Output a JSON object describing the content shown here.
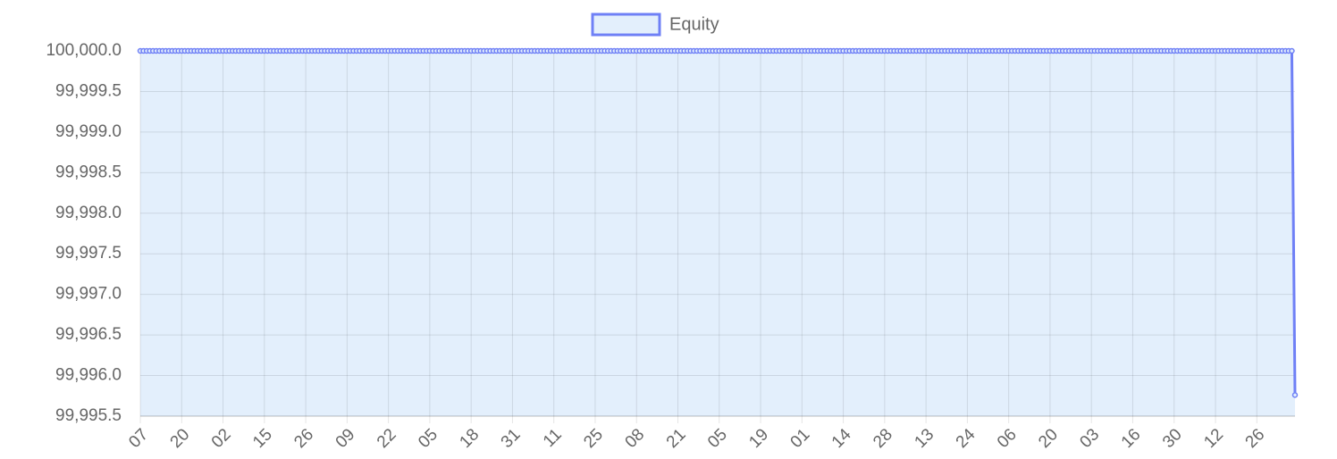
{
  "chart_data": {
    "type": "line",
    "series": [
      {
        "name": "Equity",
        "color": "#6f80f6",
        "fill": "#e3effc",
        "values": [
          100000,
          100000,
          100000,
          100000,
          100000,
          100000,
          100000,
          100000,
          100000,
          100000,
          100000,
          100000,
          100000,
          100000,
          100000,
          100000,
          100000,
          100000,
          100000,
          100000,
          100000,
          100000,
          100000,
          100000,
          100000,
          100000,
          100000,
          100000,
          100000,
          100000,
          100000,
          100000,
          100000,
          100000,
          100000,
          100000,
          100000,
          100000,
          100000,
          100000,
          100000,
          100000,
          100000,
          100000,
          100000,
          100000,
          100000,
          100000,
          100000,
          100000,
          100000,
          100000,
          100000,
          100000,
          100000,
          100000,
          100000,
          100000,
          100000,
          100000,
          100000,
          100000,
          100000,
          100000,
          100000,
          100000,
          100000,
          100000,
          100000,
          100000,
          100000,
          100000,
          100000,
          100000,
          100000,
          100000,
          100000,
          100000,
          100000,
          100000,
          100000,
          100000,
          100000,
          100000,
          100000,
          100000,
          100000,
          100000,
          100000,
          100000,
          100000,
          100000,
          100000,
          100000,
          100000,
          100000,
          100000,
          100000,
          100000,
          100000,
          100000,
          100000,
          100000,
          100000,
          100000,
          100000,
          100000,
          100000,
          100000,
          100000,
          100000,
          100000,
          100000,
          100000,
          100000,
          100000,
          100000,
          100000,
          100000,
          100000,
          100000,
          100000,
          100000,
          100000,
          100000,
          100000,
          100000,
          100000,
          100000,
          100000,
          100000,
          100000,
          100000,
          100000,
          100000,
          100000,
          100000,
          100000,
          100000,
          100000,
          100000,
          100000,
          100000,
          100000,
          100000,
          100000,
          100000,
          100000,
          100000,
          100000,
          100000,
          100000,
          100000,
          100000,
          100000,
          100000,
          100000,
          100000,
          100000,
          100000,
          100000,
          100000,
          100000,
          100000,
          100000,
          100000,
          100000,
          100000,
          100000,
          100000,
          100000,
          100000,
          100000,
          100000,
          100000,
          100000,
          100000,
          100000,
          100000,
          100000,
          100000,
          100000,
          100000,
          100000,
          100000,
          100000,
          100000,
          100000,
          100000,
          100000,
          100000,
          100000,
          100000,
          100000,
          100000,
          100000,
          100000,
          100000,
          100000,
          100000,
          100000,
          100000,
          100000,
          100000,
          100000,
          100000,
          100000,
          100000,
          100000,
          100000,
          100000,
          100000,
          100000,
          100000,
          100000,
          100000,
          100000,
          100000,
          100000,
          100000,
          100000,
          100000,
          100000,
          100000,
          100000,
          100000,
          100000,
          100000,
          100000,
          100000,
          100000,
          100000,
          100000,
          100000,
          100000,
          100000,
          100000,
          100000,
          100000,
          100000,
          100000,
          100000,
          100000,
          100000,
          100000,
          100000,
          100000,
          100000,
          100000,
          100000,
          100000,
          100000,
          100000,
          100000,
          100000,
          100000,
          100000,
          100000,
          100000,
          100000,
          100000,
          100000,
          100000,
          100000,
          100000,
          100000,
          100000,
          100000,
          100000,
          100000,
          100000,
          100000,
          100000,
          100000,
          100000,
          100000,
          100000,
          100000,
          100000,
          100000,
          100000,
          100000,
          100000,
          100000,
          100000,
          100000,
          100000,
          100000,
          100000,
          100000,
          100000,
          100000,
          100000,
          100000,
          100000,
          100000,
          100000,
          100000,
          100000,
          100000,
          100000,
          100000,
          100000,
          100000,
          100000,
          100000,
          100000,
          100000,
          100000,
          100000,
          100000,
          100000,
          100000,
          100000,
          100000,
          100000,
          100000,
          100000,
          100000,
          100000,
          100000,
          100000,
          100000,
          100000,
          100000,
          100000,
          100000,
          100000,
          100000,
          100000,
          100000,
          100000,
          100000,
          100000,
          100000,
          100000,
          100000,
          100000,
          100000,
          100000,
          100000,
          100000,
          100000,
          100000,
          100000,
          100000,
          100000,
          100000,
          100000,
          100000,
          100000,
          100000,
          100000,
          100000,
          100000,
          100000,
          100000,
          100000,
          100000,
          100000,
          100000,
          100000,
          100000,
          99995.76
        ]
      }
    ],
    "categories": [
      "07",
      null,
      null,
      null,
      null,
      null,
      null,
      null,
      null,
      null,
      null,
      null,
      null,
      "20",
      null,
      null,
      null,
      null,
      null,
      null,
      null,
      null,
      null,
      null,
      null,
      null,
      "02",
      null,
      null,
      null,
      null,
      null,
      null,
      null,
      null,
      null,
      null,
      null,
      null,
      "15",
      null,
      null,
      null,
      null,
      null,
      null,
      null,
      null,
      null,
      null,
      null,
      null,
      "26",
      null,
      null,
      null,
      null,
      null,
      null,
      null,
      null,
      null,
      null,
      null,
      null,
      "09",
      null,
      null,
      null,
      null,
      null,
      null,
      null,
      null,
      null,
      null,
      null,
      null,
      "22",
      null,
      null,
      null,
      null,
      null,
      null,
      null,
      null,
      null,
      null,
      null,
      null,
      "05",
      null,
      null,
      null,
      null,
      null,
      null,
      null,
      null,
      null,
      null,
      null,
      null,
      "18",
      null,
      null,
      null,
      null,
      null,
      null,
      null,
      null,
      null,
      null,
      null,
      null,
      "31",
      null,
      null,
      null,
      null,
      null,
      null,
      null,
      null,
      null,
      null,
      null,
      null,
      "11",
      null,
      null,
      null,
      null,
      null,
      null,
      null,
      null,
      null,
      null,
      null,
      null,
      "25",
      null,
      null,
      null,
      null,
      null,
      null,
      null,
      null,
      null,
      null,
      null,
      null,
      "08",
      null,
      null,
      null,
      null,
      null,
      null,
      null,
      null,
      null,
      null,
      null,
      null,
      "21",
      null,
      null,
      null,
      null,
      null,
      null,
      null,
      null,
      null,
      null,
      null,
      null,
      "05",
      null,
      null,
      null,
      null,
      null,
      null,
      null,
      null,
      null,
      null,
      null,
      null,
      "19",
      null,
      null,
      null,
      null,
      null,
      null,
      null,
      null,
      null,
      null,
      null,
      null,
      "01",
      null,
      null,
      null,
      null,
      null,
      null,
      null,
      null,
      null,
      null,
      null,
      null,
      "14",
      null,
      null,
      null,
      null,
      null,
      null,
      null,
      null,
      null,
      null,
      null,
      null,
      "28",
      null,
      null,
      null,
      null,
      null,
      null,
      null,
      null,
      null,
      null,
      null,
      null,
      "13",
      null,
      null,
      null,
      null,
      null,
      null,
      null,
      null,
      null,
      null,
      null,
      null,
      "24",
      null,
      null,
      null,
      null,
      null,
      null,
      null,
      null,
      null,
      null,
      null,
      null,
      "06",
      null,
      null,
      null,
      null,
      null,
      null,
      null,
      null,
      null,
      null,
      null,
      null,
      "20",
      null,
      null,
      null,
      null,
      null,
      null,
      null,
      null,
      null,
      null,
      null,
      null,
      "03",
      null,
      null,
      null,
      null,
      null,
      null,
      null,
      null,
      null,
      null,
      null,
      null,
      "16",
      null,
      null,
      null,
      null,
      null,
      null,
      null,
      null,
      null,
      null,
      null,
      null,
      "30",
      null,
      null,
      null,
      null,
      null,
      null,
      null,
      null,
      null,
      null,
      null,
      null,
      "12",
      null,
      null,
      null,
      null,
      null,
      null,
      null,
      null,
      null,
      null,
      null,
      null,
      "26",
      null,
      null,
      null,
      null,
      null,
      null,
      null,
      null,
      null,
      null,
      null,
      null
    ],
    "ylim": [
      99995.5,
      100000
    ],
    "yticks": [
      {
        "value": 99995.5,
        "label": "99,995.5"
      },
      {
        "value": 99996,
        "label": "99,996.0"
      },
      {
        "value": 99996.5,
        "label": "99,996.5"
      },
      {
        "value": 99997,
        "label": "99,997.0"
      },
      {
        "value": 99997.5,
        "label": "99,997.5"
      },
      {
        "value": 99998,
        "label": "99,998.0"
      },
      {
        "value": 99998.5,
        "label": "99,998.5"
      },
      {
        "value": 99999,
        "label": "99,999.0"
      },
      {
        "value": 99999.5,
        "label": "99,999.5"
      },
      {
        "value": 100000,
        "label": "100,000.0"
      }
    ],
    "grid": true,
    "legend": "top"
  }
}
